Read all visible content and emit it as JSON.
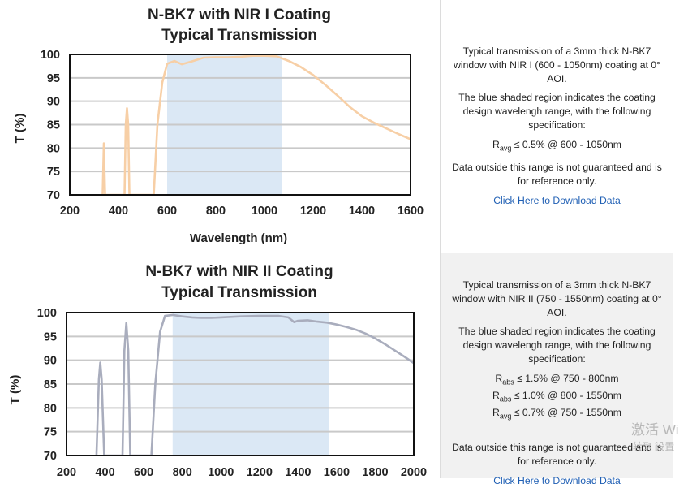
{
  "charts": [
    {
      "title_line1": "N-BK7 with NIR I Coating",
      "title_line2": "Typical Transmission",
      "ylabel": "T (%)",
      "xlabel": "Wavelength (nm)",
      "description": {
        "p1": "Typical transmission of a 3mm thick N-BK7 window with NIR I (600 - 1050nm) coating at 0° AOI.",
        "p2": "The blue shaded region indicates the coating design wavelengh range, with the following specification:",
        "specs": [
          {
            "symbol": "R",
            "sub": "avg",
            "text": " ≤ 0.5% @ 600 - 1050nm"
          }
        ],
        "p3": "Data outside this range is not guaranteed and is for reference only.",
        "link": "Click Here to Download Data"
      }
    },
    {
      "title_line1": "N-BK7 with NIR II Coating",
      "title_line2": "Typical Transmission",
      "ylabel": "T (%)",
      "xlabel": "",
      "description": {
        "p1": "Typical transmission of a 3mm thick N-BK7 window with NIR II (750 - 1550nm) coating at 0° AOI.",
        "p2": "The blue shaded region indicates the coating design wavelengh range, with the following specification:",
        "specs": [
          {
            "symbol": "R",
            "sub": "abs",
            "text": " ≤ 1.5% @ 750 - 800nm"
          },
          {
            "symbol": "R",
            "sub": "abs",
            "text": " ≤ 1.0% @ 800 - 1550nm"
          },
          {
            "symbol": "R",
            "sub": "avg",
            "text": " ≤ 0.7% @ 750 - 1550nm"
          }
        ],
        "p3": "Data outside this range is not guaranteed and is for reference only.",
        "link": "Click Here to Download Data"
      }
    }
  ],
  "watermark": {
    "line1": "激活 Wi",
    "line2": "转到 设置"
  },
  "colors": {
    "curve1": "#f7cfa6",
    "curve2": "#a9adbd",
    "band": "#dbe8f5",
    "grid": "#c9c9c9",
    "link": "#1f5fb4"
  },
  "chart_data": [
    {
      "type": "line",
      "title": "N-BK7 with NIR I Coating Typical Transmission",
      "xlabel": "Wavelength (nm)",
      "ylabel": "T (%)",
      "xlim": [
        200,
        1600
      ],
      "ylim": [
        70,
        100
      ],
      "xticks": [
        200,
        400,
        600,
        800,
        1000,
        1200,
        1400,
        1600
      ],
      "yticks": [
        70,
        75,
        80,
        85,
        90,
        95,
        100
      ],
      "grid": true,
      "shaded_band": [
        600,
        1070
      ],
      "series": [
        {
          "values": [
            [
              335,
              70
            ],
            [
              340,
              81
            ],
            [
              345,
              70
            ],
            [
              425,
              70
            ],
            [
              430,
              85
            ],
            [
              435,
              88.5
            ],
            [
              440,
              85
            ],
            [
              445,
              70
            ],
            [
              545,
              70
            ],
            [
              560,
              85
            ],
            [
              580,
              94
            ],
            [
              600,
              98
            ],
            [
              630,
              98.6
            ],
            [
              660,
              97.9
            ],
            [
              700,
              98.5
            ],
            [
              750,
              99.3
            ],
            [
              800,
              99.4
            ],
            [
              850,
              99.4
            ],
            [
              900,
              99.5
            ],
            [
              950,
              99.7
            ],
            [
              1000,
              99.7
            ],
            [
              1050,
              99.6
            ],
            [
              1100,
              98.6
            ],
            [
              1150,
              97.3
            ],
            [
              1200,
              95.6
            ],
            [
              1250,
              93.5
            ],
            [
              1300,
              91.2
            ],
            [
              1350,
              88.8
            ],
            [
              1400,
              86.8
            ],
            [
              1450,
              85.4
            ],
            [
              1500,
              84.2
            ],
            [
              1550,
              83.0
            ],
            [
              1600,
              81.9
            ]
          ]
        }
      ]
    },
    {
      "type": "line",
      "title": "N-BK7 with NIR II Coating Typical Transmission",
      "xlabel": "",
      "ylabel": "T (%)",
      "xlim": [
        200,
        2000
      ],
      "ylim": [
        70,
        100
      ],
      "xticks": [
        200,
        400,
        600,
        800,
        1000,
        1200,
        1400,
        1600,
        1800,
        2000
      ],
      "yticks": [
        70,
        75,
        80,
        85,
        90,
        95,
        100
      ],
      "grid": true,
      "shaded_band": [
        750,
        1560
      ],
      "series": [
        {
          "values": [
            [
              355,
              70
            ],
            [
              368,
              86
            ],
            [
              375,
              89.5
            ],
            [
              382,
              86
            ],
            [
              395,
              70
            ],
            [
              490,
              70
            ],
            [
              500,
              92
            ],
            [
              510,
              97.8
            ],
            [
              520,
              92
            ],
            [
              530,
              70
            ],
            [
              640,
              70
            ],
            [
              660,
              85
            ],
            [
              685,
              96
            ],
            [
              710,
              99.3
            ],
            [
              750,
              99.5
            ],
            [
              800,
              99.2
            ],
            [
              850,
              99.0
            ],
            [
              900,
              98.9
            ],
            [
              950,
              98.9
            ],
            [
              1000,
              99.0
            ],
            [
              1100,
              99.2
            ],
            [
              1200,
              99.3
            ],
            [
              1300,
              99.3
            ],
            [
              1350,
              99.0
            ],
            [
              1380,
              98.0
            ],
            [
              1400,
              98.3
            ],
            [
              1450,
              98.4
            ],
            [
              1500,
              98.1
            ],
            [
              1550,
              97.9
            ],
            [
              1600,
              97.5
            ],
            [
              1650,
              97.0
            ],
            [
              1700,
              96.4
            ],
            [
              1750,
              95.6
            ],
            [
              1800,
              94.6
            ],
            [
              1850,
              93.4
            ],
            [
              1900,
              92.1
            ],
            [
              1950,
              90.8
            ],
            [
              2000,
              89.4
            ]
          ]
        }
      ]
    }
  ]
}
